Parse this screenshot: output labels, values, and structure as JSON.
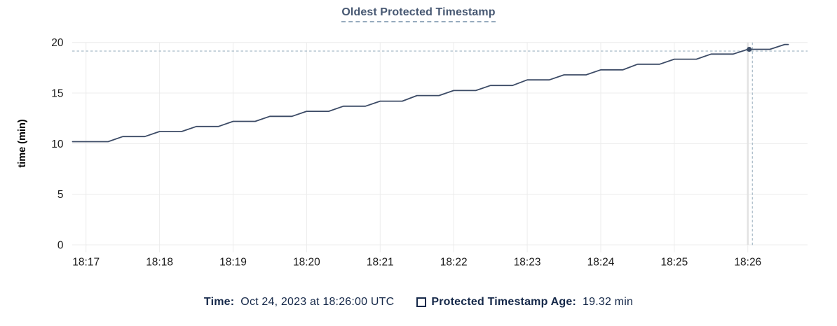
{
  "colors": {
    "line": "#3c4b66",
    "dot": "#394a64",
    "grid": "#ececec",
    "hover_band": "#e2e2e2",
    "crosshair": "#a7bac7",
    "title": "#475872",
    "title_underline": "#96abbe",
    "legend_text": "#152849",
    "tick_text": "#1a1a1a",
    "axis_label_text": "#000000"
  },
  "legend": {
    "time_label": "Time:",
    "time_value": "Oct 24, 2023 at 18:26:00 UTC",
    "series_checkbox_icon": "checkbox-unchecked-icon",
    "series_label": "Protected Timestamp Age:",
    "series_value": "19.32 min"
  },
  "chart_data": {
    "type": "line",
    "title": "Oldest Protected Timestamp",
    "xlabel": "",
    "ylabel": "time (min)",
    "ylim": [
      0,
      20
    ],
    "yticks": [
      0,
      5,
      10,
      15,
      20
    ],
    "xticks": [
      "18:17",
      "18:18",
      "18:19",
      "18:20",
      "18:21",
      "18:22",
      "18:23",
      "18:24",
      "18:25",
      "18:26"
    ],
    "grid": true,
    "legend_position": "bottom",
    "x_start": "18:16:49",
    "x_end": "18:26:33",
    "series": [
      {
        "name": "Protected Timestamp Age",
        "unit": "min",
        "x": [
          "18:17:00",
          "18:17:30",
          "18:18:00",
          "18:18:30",
          "18:19:00",
          "18:19:30",
          "18:20:00",
          "18:20:30",
          "18:21:00",
          "18:21:30",
          "18:22:00",
          "18:22:30",
          "18:23:00",
          "18:23:30",
          "18:24:00",
          "18:24:30",
          "18:25:00",
          "18:25:30",
          "18:26:00",
          "18:26:30"
        ],
        "values": [
          10.2,
          10.7,
          11.2,
          11.7,
          12.2,
          12.7,
          13.2,
          13.7,
          14.2,
          14.75,
          15.25,
          15.75,
          16.3,
          16.8,
          17.3,
          17.85,
          18.35,
          18.85,
          19.32,
          19.8
        ]
      }
    ],
    "selection": {
      "time": "18:26:00",
      "value": 19.32,
      "time_label": "Oct 24, 2023 at 18:26:00 UTC",
      "value_label": "19.32 min"
    }
  }
}
